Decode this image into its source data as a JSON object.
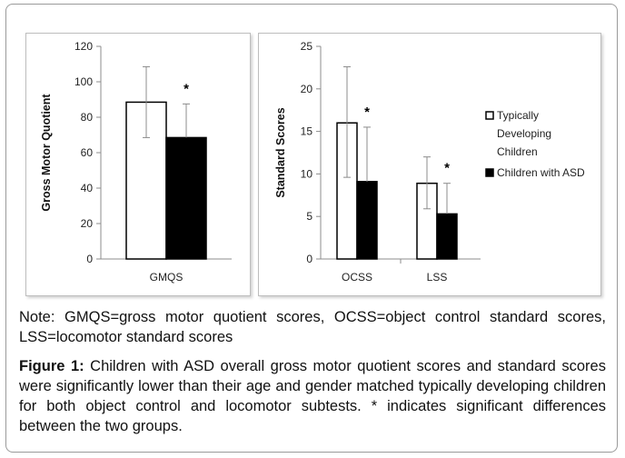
{
  "chart_data": [
    {
      "type": "bar",
      "ylabel": "Gross Motor Quotient",
      "ylim": [
        0,
        120
      ],
      "yticks": [
        "0",
        "20",
        "40",
        "60",
        "80",
        "100",
        "120"
      ],
      "categories": [
        "GMQS"
      ],
      "series": [
        {
          "name": "Typically Developing Children",
          "values": [
            88.5
          ],
          "error_upper": [
            108.5
          ],
          "error_lower": [
            68.5
          ]
        },
        {
          "name": "Children with ASD",
          "values": [
            68.5
          ],
          "error_upper": [
            87.5
          ]
        }
      ],
      "annotations": [
        {
          "category": "GMQS",
          "text": "*"
        }
      ],
      "legend": false,
      "grid": false
    },
    {
      "type": "bar",
      "ylabel": "Standard Scores",
      "ylim": [
        0,
        25
      ],
      "yticks": [
        "0",
        "5",
        "10",
        "15",
        "20",
        "25"
      ],
      "categories": [
        "OCSS",
        "LSS"
      ],
      "series": [
        {
          "name": "Typically Developing Children",
          "values": [
            16,
            8.9
          ],
          "error_upper": [
            22.6,
            12
          ],
          "error_lower": [
            9.6,
            5.9
          ]
        },
        {
          "name": "Children with ASD",
          "values": [
            9.1,
            5.3
          ],
          "error_upper": [
            15.5,
            8.9
          ]
        }
      ],
      "annotations": [
        {
          "category": "OCSS",
          "text": "*"
        },
        {
          "category": "LSS",
          "text": "*"
        }
      ],
      "legend": true,
      "legend_position": "right",
      "grid": false
    }
  ],
  "legend": {
    "typical_lines": [
      "Typically",
      "Developing",
      "Children"
    ],
    "asd": "Children with ASD"
  },
  "colors": {
    "typical_fill": "#ffffff",
    "asd_fill": "#000000",
    "bar_stroke": "#000000",
    "axis": "#8c8c8c",
    "error_bar": "#8c8c8c",
    "frame_border": "#9a9a9a"
  },
  "note": "Note: GMQS=gross motor quotient scores, OCSS=object control standard scores, LSS=locomotor standard scores",
  "caption": {
    "label": "Figure 1:",
    "text": " Children with ASD overall gross motor quotient scores and standard scores were significantly lower than their age and gender matched typically developing children for both object control and locomotor subtests. * indicates significant differences between the two groups."
  }
}
